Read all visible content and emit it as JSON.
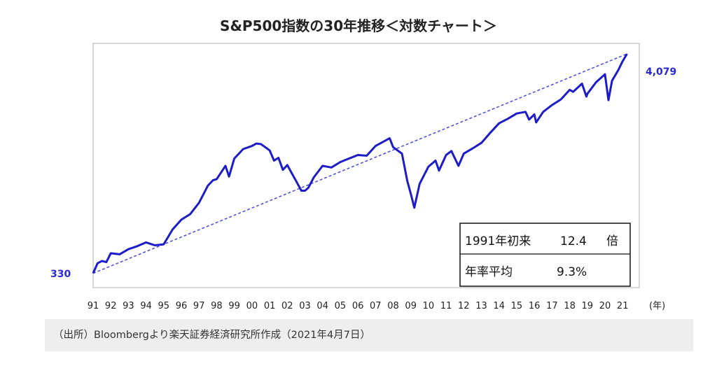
{
  "source_note": "（出所）Bloombergより楽天証券経済研究所作成（2021年4月7日）",
  "colors": {
    "series": "#1c1cc8",
    "trend": "#4a4ad8",
    "label": "#2a2ad0"
  },
  "chart_data": {
    "type": "line",
    "title": "S&P500指数の30年推移＜対数チャート＞",
    "xlabel": "(年)",
    "ylabel": "",
    "y_scale": "log",
    "ylim": [
      280,
      4600
    ],
    "xlim": [
      1991,
      2021.35
    ],
    "x_tick_labels": [
      "91",
      "92",
      "93",
      "94",
      "95",
      "96",
      "97",
      "98",
      "99",
      "00",
      "01",
      "02",
      "03",
      "04",
      "05",
      "06",
      "07",
      "08",
      "09",
      "10",
      "11",
      "12",
      "13",
      "14",
      "15",
      "16",
      "17",
      "18",
      "19",
      "20",
      "21"
    ],
    "grid": false,
    "legend": "none",
    "start_label": "330",
    "end_label": "4,079",
    "trend_line": {
      "x": [
        1991.0,
        2021.25
      ],
      "y": [
        330,
        4079
      ]
    },
    "summary_box": [
      {
        "label": "1991年初来",
        "value": "12.4",
        "unit": "倍"
      },
      {
        "label": "年率平均",
        "value": "9.3%",
        "unit": ""
      }
    ],
    "series": [
      {
        "x": [
          1991.0,
          1991.25,
          1991.5,
          1991.75,
          1992.0,
          1992.5,
          1993.0,
          1993.5,
          1994.0,
          1994.5,
          1995.0,
          1995.5,
          1996.0,
          1996.5,
          1997.0,
          1997.5,
          1997.8,
          1998.0,
          1998.5,
          1998.7,
          1999.0,
          1999.5,
          2000.0,
          2000.25,
          2000.5,
          2000.75,
          2001.0,
          2001.25,
          2001.5,
          2001.75,
          2002.0,
          2002.5,
          2002.8,
          2003.0,
          2003.2,
          2003.5,
          2004.0,
          2004.5,
          2005.0,
          2005.5,
          2006.0,
          2006.5,
          2007.0,
          2007.5,
          2007.8,
          2008.0,
          2008.5,
          2008.8,
          2009.0,
          2009.2,
          2009.5,
          2010.0,
          2010.4,
          2010.6,
          2011.0,
          2011.3,
          2011.7,
          2012.0,
          2012.5,
          2013.0,
          2013.5,
          2014.0,
          2014.5,
          2015.0,
          2015.5,
          2015.7,
          2016.0,
          2016.1,
          2016.5,
          2017.0,
          2017.5,
          2018.0,
          2018.2,
          2018.7,
          2018.95,
          2019.0,
          2019.5,
          2020.0,
          2020.2,
          2020.4,
          2020.75,
          2021.0,
          2021.25
        ],
        "y": [
          330,
          370,
          380,
          375,
          415,
          410,
          435,
          450,
          470,
          455,
          460,
          545,
          610,
          650,
          740,
          900,
          960,
          970,
          1130,
          1000,
          1230,
          1370,
          1420,
          1460,
          1450,
          1400,
          1350,
          1200,
          1240,
          1080,
          1140,
          950,
          850,
          850,
          880,
          990,
          1130,
          1110,
          1180,
          1230,
          1280,
          1270,
          1420,
          1500,
          1550,
          1400,
          1300,
          950,
          820,
          700,
          920,
          1120,
          1200,
          1070,
          1280,
          1340,
          1130,
          1300,
          1380,
          1470,
          1650,
          1840,
          1940,
          2060,
          2100,
          1920,
          2040,
          1860,
          2100,
          2270,
          2420,
          2700,
          2640,
          2900,
          2500,
          2580,
          2950,
          3230,
          2400,
          3000,
          3380,
          3750,
          4079
        ]
      }
    ]
  }
}
